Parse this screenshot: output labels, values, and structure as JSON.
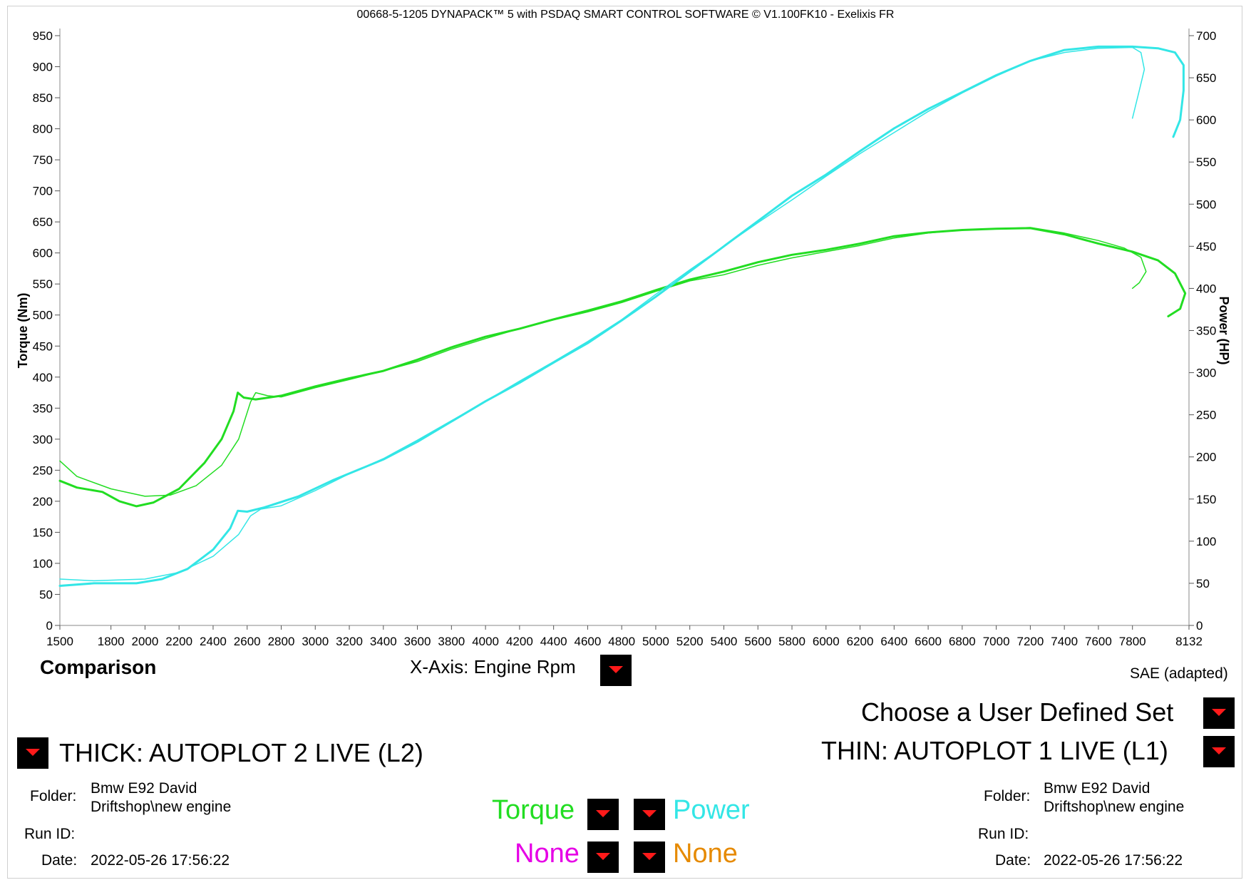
{
  "window_title": "00668-5-1205 DYNAPACK™ 5 with PSDAQ SMART CONTROL SOFTWARE © V1.100FK10 - Exelixis FR",
  "colors": {
    "torque": "#22dd22",
    "power": "#33e6e6",
    "none1": "#e600e6",
    "none2": "#e68a00",
    "dropdown_arrow": "#ff1a1a"
  },
  "chart_data": {
    "type": "line",
    "xlabel": "",
    "ylabel_left": "Torque (Nm)",
    "ylabel_right": "Power (HP)",
    "x_ticks": [
      "1500",
      "1800",
      "2000",
      "2200",
      "2400",
      "2600",
      "2800",
      "3000",
      "3200",
      "3400",
      "3600",
      "3800",
      "4000",
      "4200",
      "4400",
      "4600",
      "4800",
      "5000",
      "5200",
      "5400",
      "5600",
      "5800",
      "6000",
      "6200",
      "6400",
      "6600",
      "6800",
      "7000",
      "7200",
      "7400",
      "7600",
      "7800",
      "8132"
    ],
    "xlim": [
      1500,
      8132
    ],
    "y_left_ticks": [
      0,
      50,
      100,
      150,
      200,
      250,
      300,
      350,
      400,
      450,
      500,
      550,
      600,
      650,
      700,
      750,
      800,
      850,
      900,
      950
    ],
    "y_left_lim": [
      0,
      950
    ],
    "y_right_ticks": [
      0,
      50,
      100,
      150,
      200,
      250,
      300,
      350,
      400,
      450,
      500,
      550,
      600,
      650,
      700
    ],
    "y_right_lim": [
      0,
      700
    ],
    "series": [
      {
        "name": "Torque",
        "line": "thick",
        "axis": "left",
        "points": [
          [
            1500,
            233
          ],
          [
            1600,
            222
          ],
          [
            1750,
            215
          ],
          [
            1850,
            200
          ],
          [
            1950,
            192
          ],
          [
            2050,
            198
          ],
          [
            2200,
            220
          ],
          [
            2350,
            262
          ],
          [
            2450,
            300
          ],
          [
            2520,
            345
          ],
          [
            2545,
            375
          ],
          [
            2580,
            367
          ],
          [
            2650,
            364
          ],
          [
            2800,
            370
          ],
          [
            3000,
            385
          ],
          [
            3200,
            398
          ],
          [
            3400,
            410
          ],
          [
            3600,
            428
          ],
          [
            3800,
            448
          ],
          [
            4000,
            465
          ],
          [
            4200,
            478
          ],
          [
            4400,
            493
          ],
          [
            4600,
            507
          ],
          [
            4800,
            522
          ],
          [
            5000,
            540
          ],
          [
            5200,
            557
          ],
          [
            5400,
            570
          ],
          [
            5600,
            585
          ],
          [
            5800,
            597
          ],
          [
            6000,
            605
          ],
          [
            6200,
            615
          ],
          [
            6400,
            627
          ],
          [
            6600,
            633
          ],
          [
            6800,
            637
          ],
          [
            7000,
            639
          ],
          [
            7200,
            640
          ],
          [
            7400,
            630
          ],
          [
            7600,
            615
          ],
          [
            7800,
            602
          ],
          [
            7950,
            588
          ],
          [
            8050,
            567
          ],
          [
            8110,
            535
          ],
          [
            8080,
            510
          ],
          [
            8010,
            498
          ]
        ]
      },
      {
        "name": "Torque",
        "line": "thin",
        "axis": "left",
        "points": [
          [
            1500,
            265
          ],
          [
            1600,
            240
          ],
          [
            1800,
            220
          ],
          [
            2000,
            208
          ],
          [
            2150,
            210
          ],
          [
            2300,
            225
          ],
          [
            2450,
            258
          ],
          [
            2550,
            300
          ],
          [
            2620,
            360
          ],
          [
            2650,
            375
          ],
          [
            2720,
            370
          ],
          [
            2800,
            368
          ],
          [
            3000,
            383
          ],
          [
            3200,
            396
          ],
          [
            3400,
            410
          ],
          [
            3600,
            425
          ],
          [
            3800,
            445
          ],
          [
            4000,
            462
          ],
          [
            4200,
            478
          ],
          [
            4400,
            492
          ],
          [
            4600,
            505
          ],
          [
            4800,
            520
          ],
          [
            5000,
            538
          ],
          [
            5200,
            555
          ],
          [
            5400,
            565
          ],
          [
            5600,
            580
          ],
          [
            5800,
            592
          ],
          [
            6000,
            602
          ],
          [
            6200,
            612
          ],
          [
            6400,
            624
          ],
          [
            6600,
            632
          ],
          [
            6800,
            637
          ],
          [
            7000,
            639
          ],
          [
            7200,
            641
          ],
          [
            7400,
            632
          ],
          [
            7600,
            620
          ],
          [
            7750,
            608
          ],
          [
            7850,
            593
          ],
          [
            7880,
            570
          ],
          [
            7840,
            552
          ],
          [
            7800,
            543
          ]
        ]
      },
      {
        "name": "Power",
        "line": "thick",
        "axis": "right",
        "points": [
          [
            1500,
            47
          ],
          [
            1700,
            50
          ],
          [
            1950,
            50
          ],
          [
            2100,
            55
          ],
          [
            2250,
            67
          ],
          [
            2400,
            90
          ],
          [
            2500,
            115
          ],
          [
            2545,
            136
          ],
          [
            2600,
            135
          ],
          [
            2700,
            140
          ],
          [
            2900,
            153
          ],
          [
            3100,
            172
          ],
          [
            3400,
            197
          ],
          [
            3600,
            218
          ],
          [
            3800,
            242
          ],
          [
            4000,
            266
          ],
          [
            4200,
            288
          ],
          [
            4400,
            312
          ],
          [
            4600,
            335
          ],
          [
            4800,
            362
          ],
          [
            5000,
            390
          ],
          [
            5200,
            420
          ],
          [
            5400,
            450
          ],
          [
            5600,
            480
          ],
          [
            5800,
            510
          ],
          [
            6000,
            535
          ],
          [
            6200,
            563
          ],
          [
            6400,
            590
          ],
          [
            6600,
            613
          ],
          [
            6800,
            633
          ],
          [
            7000,
            653
          ],
          [
            7200,
            670
          ],
          [
            7400,
            683
          ],
          [
            7600,
            687
          ],
          [
            7800,
            687
          ],
          [
            7950,
            685
          ],
          [
            8050,
            680
          ],
          [
            8100,
            665
          ],
          [
            8100,
            635
          ],
          [
            8080,
            600
          ],
          [
            8040,
            580
          ]
        ]
      },
      {
        "name": "Power",
        "line": "thin",
        "axis": "right",
        "points": [
          [
            1500,
            55
          ],
          [
            1700,
            53
          ],
          [
            2000,
            55
          ],
          [
            2200,
            63
          ],
          [
            2400,
            82
          ],
          [
            2550,
            108
          ],
          [
            2620,
            130
          ],
          [
            2680,
            138
          ],
          [
            2800,
            142
          ],
          [
            3000,
            160
          ],
          [
            3200,
            180
          ],
          [
            3400,
            198
          ],
          [
            3600,
            220
          ],
          [
            3800,
            243
          ],
          [
            4000,
            266
          ],
          [
            4200,
            290
          ],
          [
            4400,
            313
          ],
          [
            4600,
            337
          ],
          [
            4800,
            363
          ],
          [
            5000,
            393
          ],
          [
            5200,
            422
          ],
          [
            5400,
            450
          ],
          [
            5600,
            478
          ],
          [
            5800,
            505
          ],
          [
            6000,
            533
          ],
          [
            6200,
            560
          ],
          [
            6400,
            585
          ],
          [
            6600,
            610
          ],
          [
            6800,
            632
          ],
          [
            7000,
            652
          ],
          [
            7200,
            670
          ],
          [
            7400,
            680
          ],
          [
            7600,
            685
          ],
          [
            7800,
            686
          ],
          [
            7850,
            680
          ],
          [
            7870,
            660
          ],
          [
            7840,
            635
          ],
          [
            7800,
            602
          ]
        ]
      }
    ],
    "grid": false,
    "legend": "none"
  },
  "labels": {
    "comparison": "Comparison",
    "x_axis_label": "X-Axis: Engine Rpm",
    "sae": "SAE (adapted)",
    "user_set": "Choose a User Defined Set",
    "thick": "THICK: AUTOPLOT 2 LIVE (L2)",
    "thin": "THIN: AUTOPLOT 1 LIVE (L1)",
    "folder_label": "Folder:",
    "runid_label": "Run ID:",
    "date_label": "Date:"
  },
  "left_run": {
    "folder_line1": "Bmw E92 David",
    "folder_line2": "Driftshop\\new engine",
    "run_id": "",
    "date": "2022-05-26 17:56:22"
  },
  "right_run": {
    "folder_line1": "Bmw E92 David",
    "folder_line2": "Driftshop\\new engine",
    "run_id": "",
    "date": "2022-05-26 17:56:22"
  },
  "channels": {
    "torque": "Torque",
    "power": "Power",
    "none1": "None",
    "none2": "None"
  }
}
